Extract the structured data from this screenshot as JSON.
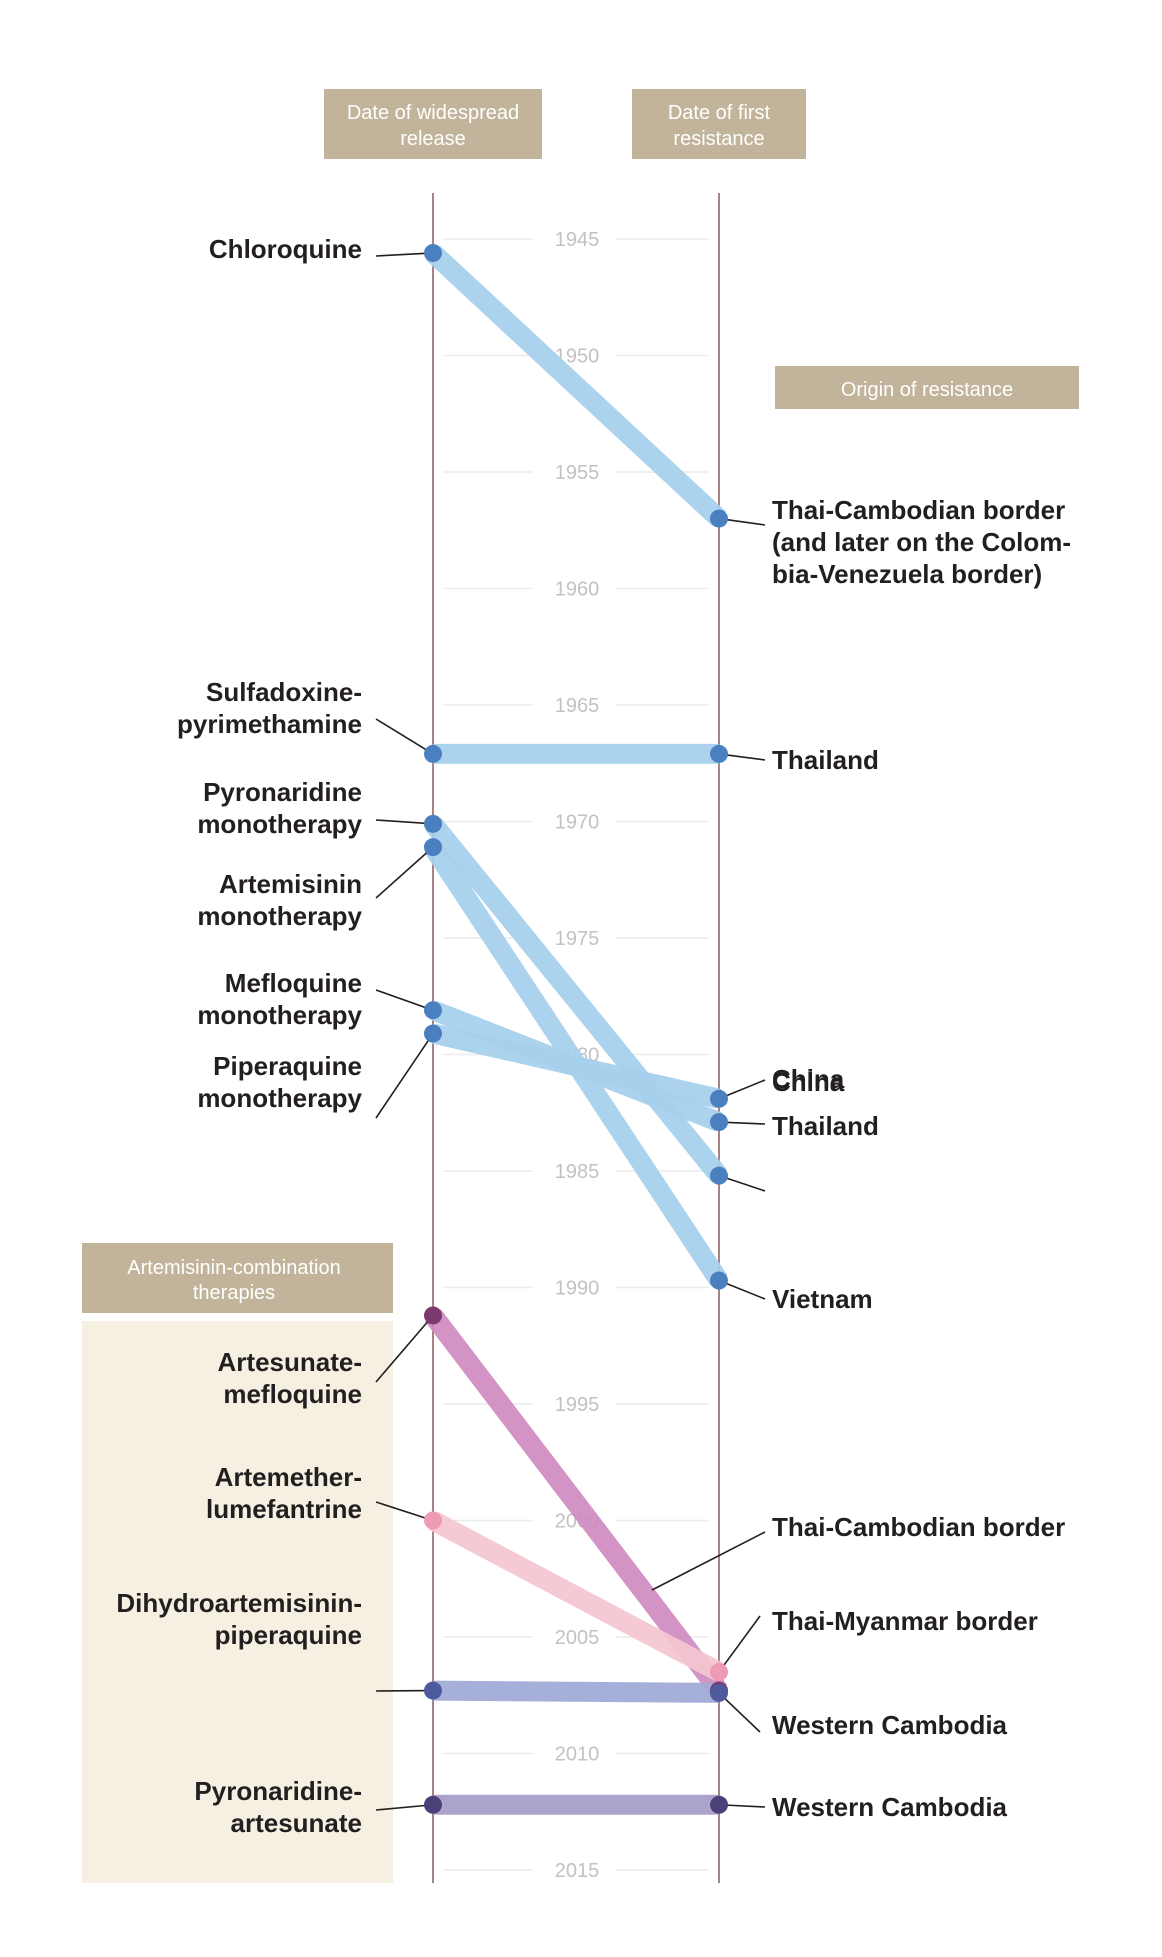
{
  "chart_data": {
    "type": "slope",
    "title": "",
    "left_axis_header": "Date of widespread release",
    "right_axis_header": "Date of first resistance",
    "origin_header": "Origin of resistance",
    "group_header": "Artemisinin-combination therapies",
    "ylim": [
      1941,
      2016
    ],
    "yticks": [
      1945,
      1950,
      1955,
      1960,
      1965,
      1970,
      1975,
      1980,
      1985,
      1990,
      1995,
      2000,
      2005,
      2010,
      2015
    ],
    "series": [
      {
        "drug": [
          "Chloroquine"
        ],
        "release": 1945.6,
        "resistance": 1957.0,
        "origin": [
          "Thai-Cambodian border",
          "(and later on the Colom-",
          "bia-Venezuela border)"
        ],
        "color": "#a6d0ec",
        "dot": "#4a7fc0"
      },
      {
        "drug": [
          "Sulfadoxine-",
          "pyrimethamine"
        ],
        "release": 1967.1,
        "resistance": 1967.1,
        "origin": [
          "Thailand"
        ],
        "color": "#a6d0ec",
        "dot": "#4a7fc0"
      },
      {
        "drug": [
          "Pyronaridine",
          "monotherapy"
        ],
        "release": 1970.1,
        "resistance": 1985.2,
        "origin": [
          "China"
        ],
        "color": "#a6d0ec",
        "dot": "#4a7fc0"
      },
      {
        "drug": [
          "Artemisinin",
          "monotherapy"
        ],
        "release": 1971.1,
        "resistance": 1989.7,
        "origin": [
          "Vietnam"
        ],
        "color": "#a6d0ec",
        "dot": "#4a7fc0"
      },
      {
        "drug": [
          "Mefloquine",
          "monotherapy"
        ],
        "release": 1978.1,
        "resistance": 1982.9,
        "origin": [
          "Thailand"
        ],
        "color": "#a6d0ec",
        "dot": "#4a7fc0"
      },
      {
        "drug": [
          "Piperaquine",
          "monotherapy"
        ],
        "release": 1979.1,
        "resistance": 1981.9,
        "origin": [
          "China"
        ],
        "color": "#a6d0ec",
        "dot": "#4a7fc0"
      },
      {
        "drug": [
          "Artesunate-",
          "mefloquine"
        ],
        "release": 1991.2,
        "resistance": 2007.3,
        "origin": [
          "Thai-Cambodian border"
        ],
        "color": "#d08abf",
        "dot": "#7a3a6e"
      },
      {
        "drug": [
          "Artemether-",
          "lumefantrine"
        ],
        "release": 2000.0,
        "resistance": 2006.5,
        "origin": [
          "Thai-Myanmar border"
        ],
        "color": "#f5c6d2",
        "dot": "#ee9bb3"
      },
      {
        "drug": [
          "Dihydroartemisinin-",
          "piperaquine"
        ],
        "release": 2007.3,
        "resistance": 2007.4,
        "origin": [
          "Western Cambodia"
        ],
        "color": "#9fa9d6",
        "dot": "#4d5a9e"
      },
      {
        "drug": [
          "Pyronaridine-",
          "artesunate"
        ],
        "release": 2012.2,
        "resistance": 2012.2,
        "origin": [
          "Western Cambodia"
        ],
        "color": "#a69cc9",
        "dot": "#4b4077"
      }
    ]
  }
}
